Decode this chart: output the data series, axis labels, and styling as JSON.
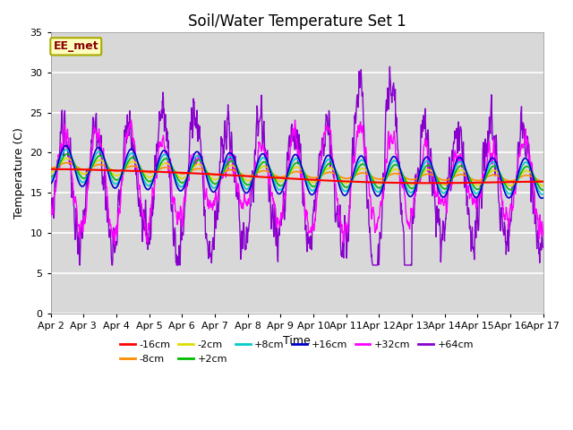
{
  "title": "Soil/Water Temperature Set 1",
  "xlabel": "Time",
  "ylabel": "Temperature (C)",
  "ylim": [
    0,
    35
  ],
  "n_days": 15,
  "annotation_text": "EE_met",
  "annotation_color": "#8B0000",
  "annotation_bg": "#FFFFC0",
  "annotation_border": "#AAAA00",
  "plot_bg": "#D8D8D8",
  "fig_bg": "#FFFFFF",
  "grid_color": "#FFFFFF",
  "series_order": [
    "-16cm",
    "-8cm",
    "-2cm",
    "+2cm",
    "+8cm",
    "+16cm",
    "+32cm",
    "+64cm"
  ],
  "series": {
    "-16cm": {
      "color": "#FF0000",
      "lw": 1.5,
      "zorder": 6
    },
    "-8cm": {
      "color": "#FF8C00",
      "lw": 1.2,
      "zorder": 5
    },
    "-2cm": {
      "color": "#DDDD00",
      "lw": 1.2,
      "zorder": 5
    },
    "+2cm": {
      "color": "#00BB00",
      "lw": 1.2,
      "zorder": 5
    },
    "+8cm": {
      "color": "#00CCCC",
      "lw": 1.2,
      "zorder": 5
    },
    "+16cm": {
      "color": "#0000CC",
      "lw": 1.2,
      "zorder": 5
    },
    "+32cm": {
      "color": "#FF00FF",
      "lw": 1.0,
      "zorder": 4
    },
    "+64cm": {
      "color": "#8800CC",
      "lw": 1.0,
      "zorder": 3
    }
  },
  "xtick_labels": [
    "Apr 2",
    "Apr 3",
    "Apr 4",
    "Apr 5",
    "Apr 6",
    "Apr 7",
    "Apr 8",
    "Apr 9",
    "Apr 10",
    "Apr 11",
    "Apr 12",
    "Apr 13",
    "Apr 14",
    "Apr 15",
    "Apr 16",
    "Apr 17"
  ],
  "title_fontsize": 12,
  "axis_fontsize": 9,
  "tick_fontsize": 8,
  "legend_fontsize": 8
}
